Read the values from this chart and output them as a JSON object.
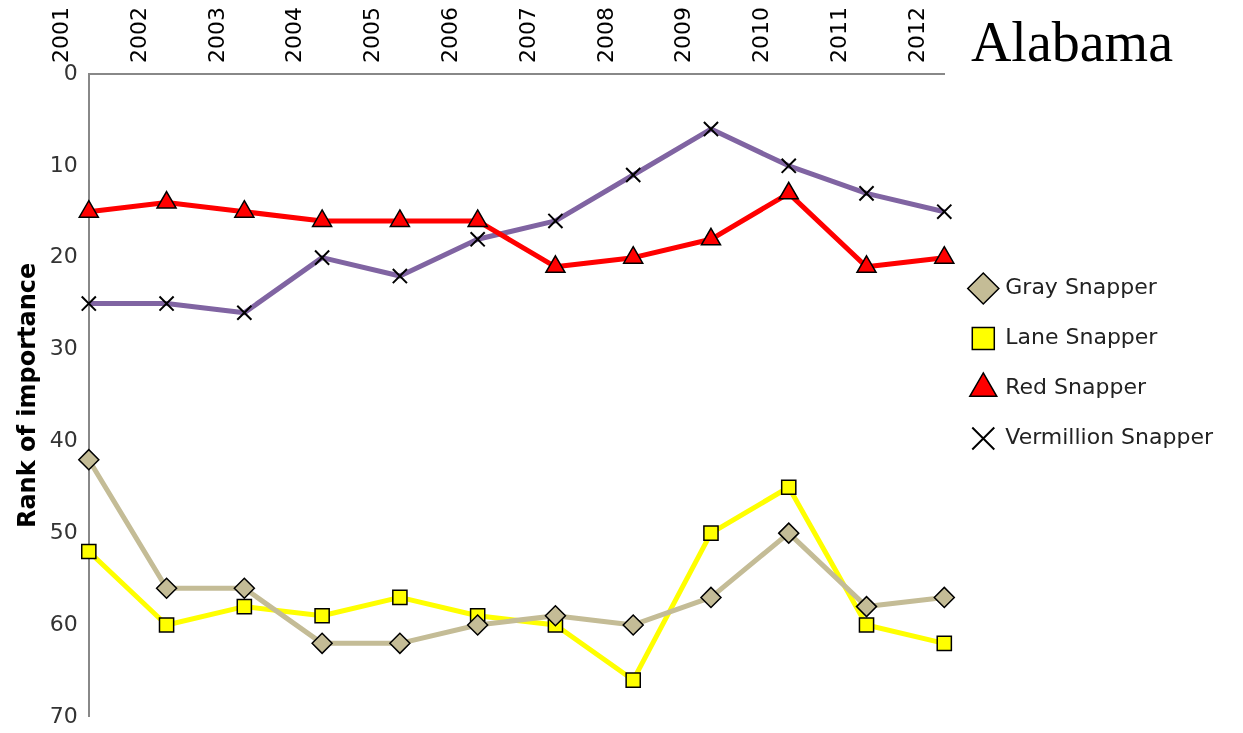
{
  "chart_data": {
    "type": "line",
    "title": "Alabama",
    "ylabel": "Rank of importance",
    "categories": [
      "2001",
      "2002",
      "2003",
      "2004",
      "2005",
      "2006",
      "2007",
      "2008",
      "2009",
      "2010",
      "2011",
      "2012"
    ],
    "ylim": [
      70,
      0
    ],
    "yticks": [
      0,
      10,
      20,
      30,
      40,
      50,
      60,
      70
    ],
    "grid": false,
    "legend": "right",
    "line_style": "solid",
    "series": [
      {
        "name": "Gray Snapper",
        "color": "#c4bc96",
        "marker": "diamond",
        "values": [
          42,
          56,
          56,
          62,
          62,
          60,
          59,
          60,
          57,
          50,
          58,
          57
        ]
      },
      {
        "name": "Lane Snapper",
        "color": "#ffff00",
        "marker": "square",
        "values": [
          52,
          60,
          58,
          59,
          57,
          59,
          60,
          66,
          50,
          45,
          60,
          62
        ]
      },
      {
        "name": "Red Snapper",
        "color": "#ff0000",
        "marker": "triangle",
        "values": [
          15,
          14,
          15,
          16,
          16,
          16,
          21,
          20,
          18,
          13,
          21,
          20
        ]
      },
      {
        "name": "Vermillion Snapper",
        "color": "#8064a2",
        "marker": "cross",
        "values": [
          25,
          25,
          26,
          20,
          22,
          18,
          16,
          11,
          6,
          10,
          13,
          15
        ]
      }
    ]
  }
}
